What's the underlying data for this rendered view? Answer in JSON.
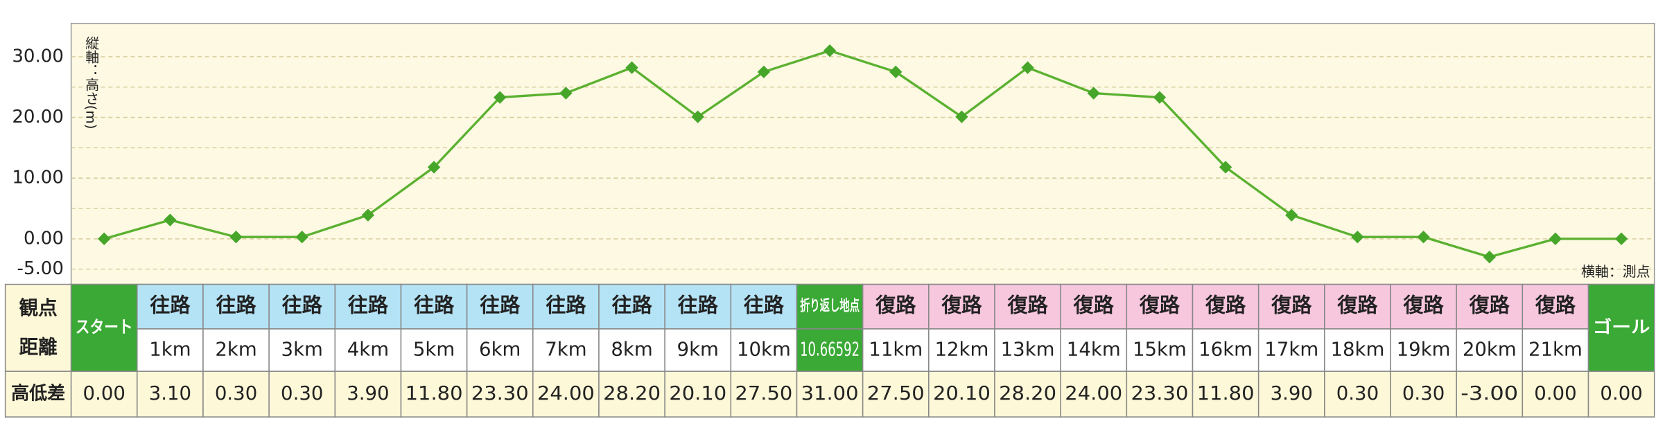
{
  "chart_data": {
    "type": "line",
    "y_label": "縦軸：高さ(m)",
    "x_label": "横軸：測点",
    "categories": [
      "スタート",
      "1km",
      "2km",
      "3km",
      "4km",
      "5km",
      "6km",
      "7km",
      "8km",
      "9km",
      "10km",
      "10.66592",
      "11km",
      "12km",
      "13km",
      "14km",
      "15km",
      "16km",
      "17km",
      "18km",
      "19km",
      "20km",
      "21km",
      "ゴール"
    ],
    "segments": [
      null,
      "往路",
      "往路",
      "往路",
      "往路",
      "往路",
      "往路",
      "往路",
      "往路",
      "往路",
      "往路",
      "折り返し地点",
      "復路",
      "復路",
      "復路",
      "復路",
      "復路",
      "復路",
      "復路",
      "復路",
      "復路",
      "復路",
      "復路",
      null
    ],
    "values": [
      0,
      3.1,
      0.3,
      0.3,
      3.9,
      11.8,
      23.3,
      24,
      28.2,
      20.1,
      27.5,
      31,
      27.5,
      20.1,
      28.2,
      24,
      23.3,
      11.8,
      3.9,
      0.3,
      0.3,
      -3,
      0,
      0
    ],
    "value_labels": [
      "0.00",
      "3.10",
      "0.30",
      "0.30",
      "3.90",
      "11.80",
      "23.30",
      "24.00",
      "28.20",
      "20.10",
      "27.50",
      "31.00",
      "27.50",
      "20.10",
      "28.20",
      "24.00",
      "23.30",
      "11.80",
      "3.90",
      "0.30",
      "0.30",
      "-3.00",
      "0.00",
      "0.00"
    ],
    "ylim": [
      -7.5,
      35.5
    ],
    "yticks": [
      {
        "value": 30,
        "label": "30.00"
      },
      {
        "value": 20,
        "label": "20.00"
      },
      {
        "value": 10,
        "label": "10.00"
      },
      {
        "value": 0,
        "label": "0.00"
      },
      {
        "value": -5,
        "label": "-5.00"
      }
    ],
    "minor_yticks": [
      25,
      15,
      5
    ],
    "grid": true,
    "color": "#5bb130",
    "marker_color": "#46a62a",
    "endpoint_color": "#3aa935",
    "segment_colors": {
      "往路": {
        "head": "#b5e3f6",
        "cell": "#ffffff",
        "text": "#222222"
      },
      "復路": {
        "head": "#f7c7de",
        "cell": "#ffffff",
        "text": "#222222"
      },
      "折り返し地点": {
        "head": "#3aa935",
        "cell": "#3aa935",
        "text": "#ffffff"
      }
    }
  },
  "table": {
    "distance_header": [
      "観点",
      "距離"
    ],
    "difference_header": "高低差"
  }
}
